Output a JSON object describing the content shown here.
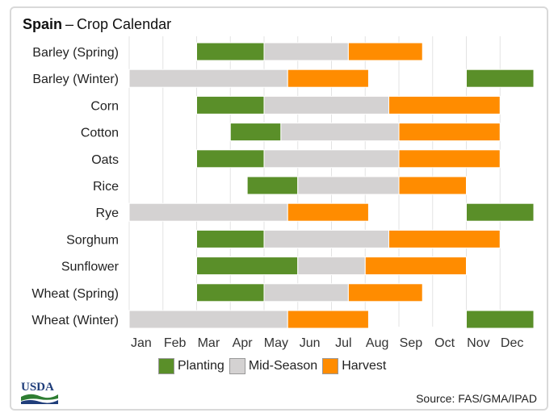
{
  "title": {
    "country": "Spain",
    "dash": "–",
    "subtitle": "Crop Calendar"
  },
  "logo": {
    "text": "USDA"
  },
  "source": "Source: FAS/GMA/IPAD",
  "colors": {
    "Planting": "#5a8f29",
    "Mid-Season": "#d4d2d2",
    "Harvest": "#ff8c00"
  },
  "chart_data": {
    "type": "gantt",
    "x_ticks": [
      "Jan",
      "Feb",
      "Mar",
      "Apr",
      "May",
      "Jun",
      "Jul",
      "Aug",
      "Sep",
      "Oct",
      "Nov",
      "Dec"
    ],
    "legend": [
      "Planting",
      "Mid-Season",
      "Harvest"
    ],
    "legend_placement": "bottom",
    "grid": "vertical month lines",
    "rows": [
      {
        "crop": "Barley (Spring)",
        "segments": [
          [
            "Planting",
            3.0,
            5.0
          ],
          [
            "Mid-Season",
            5.0,
            7.5
          ],
          [
            "Harvest",
            7.5,
            9.7
          ]
        ]
      },
      {
        "crop": "Barley (Winter)",
        "segments": [
          [
            "Mid-Season",
            1.0,
            5.7
          ],
          [
            "Harvest",
            5.7,
            8.1
          ],
          [
            "Planting",
            11.0,
            13.0
          ]
        ]
      },
      {
        "crop": "Corn",
        "segments": [
          [
            "Planting",
            3.0,
            5.0
          ],
          [
            "Mid-Season",
            5.0,
            8.7
          ],
          [
            "Harvest",
            8.7,
            12.0
          ]
        ]
      },
      {
        "crop": "Cotton",
        "segments": [
          [
            "Planting",
            4.0,
            5.5
          ],
          [
            "Mid-Season",
            5.5,
            9.0
          ],
          [
            "Harvest",
            9.0,
            12.0
          ]
        ]
      },
      {
        "crop": "Oats",
        "segments": [
          [
            "Planting",
            3.0,
            5.0
          ],
          [
            "Mid-Season",
            5.0,
            9.0
          ],
          [
            "Harvest",
            9.0,
            12.0
          ]
        ]
      },
      {
        "crop": "Rice",
        "segments": [
          [
            "Planting",
            4.5,
            6.0
          ],
          [
            "Mid-Season",
            6.0,
            9.0
          ],
          [
            "Harvest",
            9.0,
            11.0
          ]
        ]
      },
      {
        "crop": "Rye",
        "segments": [
          [
            "Mid-Season",
            1.0,
            5.7
          ],
          [
            "Harvest",
            5.7,
            8.1
          ],
          [
            "Planting",
            11.0,
            13.0
          ]
        ]
      },
      {
        "crop": "Sorghum",
        "segments": [
          [
            "Planting",
            3.0,
            5.0
          ],
          [
            "Mid-Season",
            5.0,
            8.7
          ],
          [
            "Harvest",
            8.7,
            12.0
          ]
        ]
      },
      {
        "crop": "Sunflower",
        "segments": [
          [
            "Planting",
            3.0,
            6.0
          ],
          [
            "Mid-Season",
            6.0,
            8.0
          ],
          [
            "Harvest",
            8.0,
            11.0
          ]
        ]
      },
      {
        "crop": "Wheat (Spring)",
        "segments": [
          [
            "Planting",
            3.0,
            5.0
          ],
          [
            "Mid-Season",
            5.0,
            7.5
          ],
          [
            "Harvest",
            7.5,
            9.7
          ]
        ]
      },
      {
        "crop": "Wheat (Winter)",
        "segments": [
          [
            "Mid-Season",
            1.0,
            5.7
          ],
          [
            "Harvest",
            5.7,
            8.1
          ],
          [
            "Planting",
            11.0,
            13.0
          ]
        ]
      }
    ]
  }
}
